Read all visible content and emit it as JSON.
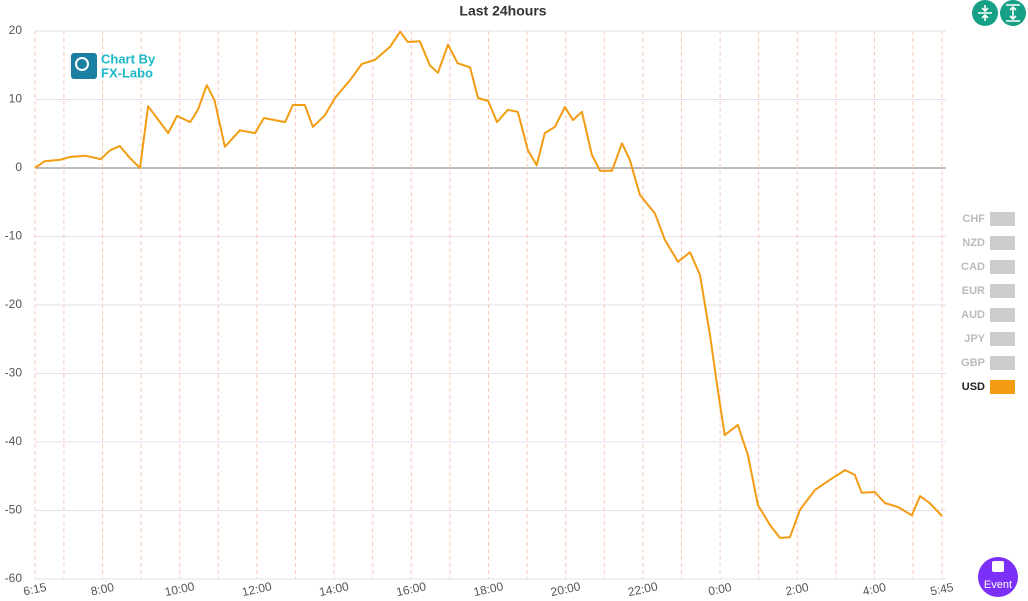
{
  "chart_data": {
    "type": "line",
    "title": "Last 24hours",
    "x": [
      6.25,
      6.5,
      6.9,
      7.15,
      7.55,
      7.95,
      8.2,
      8.45,
      8.7,
      8.97,
      9.18,
      9.45,
      9.7,
      9.93,
      10.27,
      10.47,
      10.7,
      10.9,
      11.17,
      11.56,
      11.95,
      12.18,
      12.73,
      12.93,
      13.24,
      13.45,
      13.76,
      14.02,
      14.41,
      14.72,
      15.06,
      15.45,
      15.71,
      15.91,
      16.22,
      16.48,
      16.69,
      16.95,
      17.2,
      17.52,
      17.73,
      17.99,
      18.22,
      18.5,
      18.76,
      19.02,
      19.25,
      19.46,
      19.72,
      19.98,
      20.19,
      20.42,
      20.68,
      20.89,
      21.2,
      21.46,
      21.66,
      21.92,
      22.31,
      22.57,
      22.91,
      23.22,
      23.48,
      23.74,
      23.94,
      24.12,
      24.46,
      24.72,
      24.98,
      25.29,
      25.55,
      25.81,
      26.07,
      26.46,
      26.85,
      27.24,
      27.49,
      27.67,
      28.01,
      28.27,
      28.61,
      28.97,
      29.18,
      29.43,
      29.75
    ],
    "series": [
      {
        "name": "USD",
        "color": "#f39c12",
        "values": [
          0,
          1,
          1.2,
          1.6,
          1.8,
          1.3,
          2.6,
          3.2,
          1.5,
          0,
          9,
          7,
          5.1,
          7.6,
          6.7,
          8.5,
          12.1,
          9.9,
          3.1,
          5.5,
          5.1,
          7.3,
          6.7,
          9.2,
          9.2,
          6,
          7.7,
          10.2,
          12.8,
          15.2,
          15.8,
          17.7,
          19.9,
          18.4,
          18.5,
          15,
          13.9,
          18,
          15.3,
          14.7,
          10.2,
          9.8,
          6.7,
          8.5,
          8.2,
          2.6,
          0.4,
          5.1,
          6,
          8.9,
          7,
          8.2,
          1.9,
          -0.4,
          -0.4,
          3.6,
          1.2,
          -3.9,
          -6.6,
          -10.5,
          -13.7,
          -12.3,
          -15.6,
          -24.4,
          -32.4,
          -39,
          -37.5,
          -41.9,
          -49.2,
          -52.1,
          -54,
          -53.9,
          -49.9,
          -47,
          -45.5,
          -44.1,
          -44.8,
          -47.4,
          -47.3,
          -48.9,
          -49.5,
          -50.7,
          -47.9,
          -48.9,
          -50.8
        ]
      }
    ],
    "legend": [
      {
        "name": "CHF",
        "color": "#cccccc"
      },
      {
        "name": "NZD",
        "color": "#cccccc"
      },
      {
        "name": "CAD",
        "color": "#cccccc"
      },
      {
        "name": "EUR",
        "color": "#cccccc"
      },
      {
        "name": "AUD",
        "color": "#cccccc"
      },
      {
        "name": "JPY",
        "color": "#cccccc"
      },
      {
        "name": "GBP",
        "color": "#cccccc"
      },
      {
        "name": "USD",
        "color": "#f39c12"
      }
    ],
    "legend_position": "right",
    "xlim": [
      6.25,
      29.75
    ],
    "xticks": [
      {
        "value": 6.25,
        "label": "6:15"
      },
      {
        "value": 8,
        "label": "8:00"
      },
      {
        "value": 10,
        "label": "10:00"
      },
      {
        "value": 12,
        "label": "12:00"
      },
      {
        "value": 14,
        "label": "14:00"
      },
      {
        "value": 16,
        "label": "16:00"
      },
      {
        "value": 18,
        "label": "18:00"
      },
      {
        "value": 20,
        "label": "20:00"
      },
      {
        "value": 22,
        "label": "22:00"
      },
      {
        "value": 24,
        "label": "0:00"
      },
      {
        "value": 26,
        "label": "2:00"
      },
      {
        "value": 28,
        "label": "4:00"
      },
      {
        "value": 29.75,
        "label": "5:45"
      }
    ],
    "x_minor_ticks": [
      7,
      9,
      11,
      13,
      15,
      17,
      19,
      21,
      23,
      25,
      27,
      29
    ],
    "ylim": [
      -60,
      20
    ],
    "yticks": [
      -60,
      -50,
      -40,
      -30,
      -20,
      -10,
      0,
      10,
      20
    ],
    "grid": true,
    "logo": [
      "Chart By",
      "FX-Labo"
    ],
    "event_button": "Event"
  }
}
